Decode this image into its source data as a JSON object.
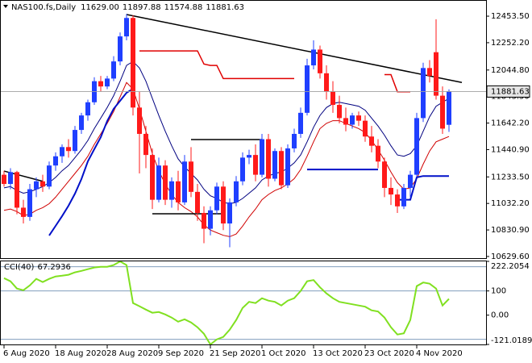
{
  "chart_data": {
    "type": "candlestick",
    "title": "NAS100.fs,Daily",
    "up_color": "#1f3fff",
    "down_color": "#ff1a1a",
    "xlim": [
      -0.625,
      74.75
    ],
    "xticks": [
      {
        "value": 0,
        "label": "6 Aug 2020"
      },
      {
        "value": 8,
        "label": "18 Aug 2020"
      },
      {
        "value": 16,
        "label": "28 Aug 2020"
      },
      {
        "value": 24,
        "label": "9 Sep 2020"
      },
      {
        "value": 32,
        "label": "21 Sep 2020"
      },
      {
        "value": 40,
        "label": "1 Oct 2020"
      },
      {
        "value": 48,
        "label": "13 Oct 2020"
      },
      {
        "value": 56,
        "label": "23 Oct 2020"
      },
      {
        "value": 64,
        "label": "4 Nov 2020"
      }
    ],
    "ylim": [
      10617,
      12564
    ],
    "yticks": [
      {
        "value": 12453.5,
        "label": "12453.50"
      },
      {
        "value": 12252.2,
        "label": "12252.20"
      },
      {
        "value": 12044.8,
        "label": "12044.80"
      },
      {
        "value": 11843.5,
        "label": "11843.50"
      },
      {
        "value": 11642.2,
        "label": "11642.20"
      },
      {
        "value": 11440.9,
        "label": "11440.90"
      },
      {
        "value": 11233.5,
        "label": "11233.50"
      },
      {
        "value": 11032.2,
        "label": "11032.20"
      },
      {
        "value": 10830.9,
        "label": "10830.90"
      },
      {
        "value": 10629.6,
        "label": "10629.60"
      }
    ],
    "candles": {
      "open": [
        11250,
        11180,
        11270,
        11000,
        10930,
        11140,
        11200,
        11160,
        11320,
        11390,
        11460,
        11430,
        11590,
        11700,
        11800,
        11960,
        11920,
        11980,
        12110,
        12300,
        12440,
        11760,
        11560,
        11400,
        11060,
        11320,
        11060,
        11200,
        11040,
        11350,
        11120,
        10960,
        10840,
        10980,
        11160,
        10880,
        11040,
        11200,
        11380,
        11400,
        11250,
        11520,
        11220,
        11430,
        11170,
        11450,
        11560,
        11720,
        12080,
        12200,
        12020,
        11880,
        11780,
        11680,
        11630,
        11700,
        11660,
        11540,
        11470,
        11350,
        11150,
        11100,
        11010,
        11150,
        11250,
        11680,
        12060,
        12180,
        11850,
        11629
      ],
      "high": [
        11280,
        11300,
        11280,
        11060,
        11180,
        11230,
        11250,
        11350,
        11420,
        11480,
        11520,
        11620,
        11720,
        11820,
        11990,
        12000,
        12000,
        12150,
        12330,
        12470,
        12460,
        11880,
        11620,
        11450,
        11380,
        11360,
        11230,
        11280,
        11400,
        11460,
        11180,
        11010,
        11010,
        11190,
        11200,
        11070,
        11240,
        11420,
        11440,
        11480,
        11560,
        11560,
        11450,
        11460,
        11480,
        11600,
        11760,
        12130,
        12270,
        12230,
        12080,
        11960,
        11850,
        11760,
        11720,
        11730,
        11700,
        11620,
        11520,
        11380,
        11230,
        11140,
        11180,
        11280,
        11720,
        12100,
        12120,
        12430,
        11920,
        11897.88
      ],
      "low": [
        11160,
        11140,
        10950,
        10880,
        10900,
        11080,
        11120,
        11140,
        11280,
        11340,
        11380,
        11410,
        11560,
        11660,
        11780,
        11880,
        11900,
        11960,
        12080,
        12270,
        11700,
        11260,
        11300,
        10990,
        11040,
        11020,
        11000,
        10980,
        11020,
        11080,
        10900,
        10730,
        10790,
        10950,
        10830,
        10700,
        11010,
        11170,
        11330,
        11200,
        11230,
        11160,
        11200,
        11140,
        11150,
        11420,
        11530,
        11700,
        12050,
        11980,
        11820,
        11720,
        11640,
        11580,
        11600,
        11620,
        11500,
        11420,
        11300,
        11080,
        11020,
        10960,
        10990,
        11080,
        11230,
        11650,
        11950,
        11820,
        11560,
        11574.88
      ],
      "close": [
        11180,
        11270,
        11000,
        10930,
        11140,
        11200,
        11160,
        11320,
        11390,
        11460,
        11430,
        11590,
        11700,
        11800,
        11960,
        11920,
        11980,
        12110,
        12300,
        12440,
        11760,
        11560,
        11400,
        11060,
        11320,
        11060,
        11200,
        11040,
        11350,
        11120,
        10960,
        10840,
        10980,
        11160,
        10880,
        11040,
        11200,
        11380,
        11400,
        11250,
        11520,
        11220,
        11430,
        11170,
        11450,
        11560,
        11720,
        12080,
        12200,
        12020,
        11880,
        11780,
        11680,
        11630,
        11700,
        11660,
        11540,
        11470,
        11350,
        11150,
        11100,
        11010,
        11150,
        11250,
        11680,
        12060,
        12000,
        11850,
        11600,
        11881.63
      ],
      "last_labels": {
        "open": "11629.00",
        "high": "11897.88",
        "low": "11574.88",
        "close": "11881.63"
      }
    },
    "overlays": [
      {
        "color": "#000080",
        "width": 1,
        "values": [
          11150,
          11160,
          11130,
          11110,
          11120,
          11140,
          11160,
          11190,
          11230,
          11280,
          11320,
          11380,
          11440,
          11510,
          11600,
          11680,
          11760,
          11850,
          11960,
          12080,
          12110,
          12060,
          11960,
          11830,
          11700,
          11580,
          11470,
          11370,
          11310,
          11260,
          11210,
          11140,
          11090,
          11070,
          11040,
          11030,
          11040,
          11070,
          11110,
          11150,
          11210,
          11240,
          11260,
          11270,
          11300,
          11340,
          11400,
          11500,
          11610,
          11700,
          11760,
          11790,
          11800,
          11790,
          11780,
          11770,
          11740,
          11680,
          11620,
          11550,
          11470,
          11400,
          11390,
          11410,
          11470,
          11580,
          11690,
          11770,
          11800,
          11830
        ]
      },
      {
        "color": "#d00000",
        "width": 1,
        "values": [
          10980,
          10990,
          10970,
          10940,
          10950,
          10980,
          11000,
          11030,
          11080,
          11140,
          11200,
          11260,
          11320,
          11390,
          11480,
          11560,
          11640,
          11730,
          11840,
          11950,
          11900,
          11750,
          11580,
          11410,
          11280,
          11180,
          11100,
          11040,
          11000,
          10970,
          10930,
          10870,
          10830,
          10810,
          10790,
          10780,
          10800,
          10860,
          10930,
          10990,
          11060,
          11100,
          11130,
          11150,
          11180,
          11220,
          11290,
          11390,
          11500,
          11600,
          11640,
          11660,
          11660,
          11640,
          11620,
          11600,
          11570,
          11510,
          11440,
          11360,
          11270,
          11190,
          11140,
          11150,
          11220,
          11330,
          11430,
          11500,
          11520,
          11540
        ]
      },
      {
        "color": "#0010c8",
        "width": 2,
        "values": [
          null,
          null,
          null,
          null,
          null,
          null,
          null,
          10789,
          10862,
          10936,
          11015,
          11107,
          11217,
          11352,
          11444,
          11535,
          11658,
          11750,
          11811,
          11872,
          11902,
          null,
          null,
          null,
          null,
          null,
          null,
          null,
          null,
          null,
          null,
          null,
          null,
          null,
          null,
          null,
          null,
          null,
          null,
          null,
          null,
          null,
          null,
          null,
          null,
          null,
          null,
          11290,
          11290,
          11290,
          11290,
          11290,
          11290,
          11290,
          11290,
          11290,
          11290,
          11290,
          11290,
          null,
          null,
          11060,
          11060,
          11060,
          11230,
          11240,
          11240,
          11240,
          11240,
          11240
        ]
      },
      {
        "color": "#e00000",
        "width": 1.5,
        "values": [
          null,
          null,
          null,
          null,
          null,
          null,
          null,
          null,
          null,
          null,
          null,
          null,
          null,
          null,
          null,
          null,
          null,
          null,
          null,
          null,
          null,
          12190,
          12190,
          12190,
          12190,
          12190,
          12190,
          12190,
          12190,
          12190,
          12190,
          12090,
          12080,
          12080,
          11980,
          11980,
          11980,
          11980,
          11980,
          11980,
          11980,
          11980,
          11980,
          11980,
          11980,
          11980,
          null,
          null,
          null,
          null,
          null,
          null,
          null,
          null,
          null,
          null,
          null,
          null,
          null,
          12010,
          12010,
          11880,
          11880,
          11880,
          null,
          null,
          null,
          null,
          null,
          null
        ]
      }
    ],
    "drawings": [
      {
        "color": "#000000",
        "x": [
          19,
          71
        ],
        "y": [
          12466,
          11950
        ]
      },
      {
        "color": "#000000",
        "x": [
          0,
          6
        ],
        "y": [
          11278,
          11200
        ]
      },
      {
        "color": "#000000",
        "x": [
          29,
          40
        ],
        "y": [
          11517,
          11517
        ]
      },
      {
        "color": "#000000",
        "x": [
          23,
          34
        ],
        "y": [
          10954,
          10954
        ]
      }
    ],
    "indicator": {
      "type": "line",
      "title": "CCI(40)",
      "color": "#80e020",
      "ylim": [
        -121.0189,
        222.2054
      ],
      "yticks": [
        222.2054,
        100,
        {
          "value": 0,
          "label": "0.00"
        },
        -121.0189
      ],
      "levels": [
        200,
        100,
        -100
      ],
      "values": [
        153,
        140,
        110,
        103,
        123,
        150,
        137,
        150,
        160,
        163,
        167,
        177,
        183,
        190,
        197,
        200,
        200,
        207,
        222.2054,
        207,
        50,
        37,
        23,
        10,
        13,
        3,
        -10,
        -27,
        -17,
        -30,
        -50,
        -77,
        -121.0189,
        -100,
        -90,
        -60,
        -20,
        30,
        55,
        50,
        70,
        60,
        55,
        40,
        60,
        70,
        100,
        140,
        145,
        115,
        90,
        70,
        55,
        50,
        45,
        40,
        35,
        20,
        15,
        -10,
        -50,
        -80,
        -75,
        -20,
        120,
        135,
        130,
        110,
        40,
        67.2936
      ]
    }
  }
}
